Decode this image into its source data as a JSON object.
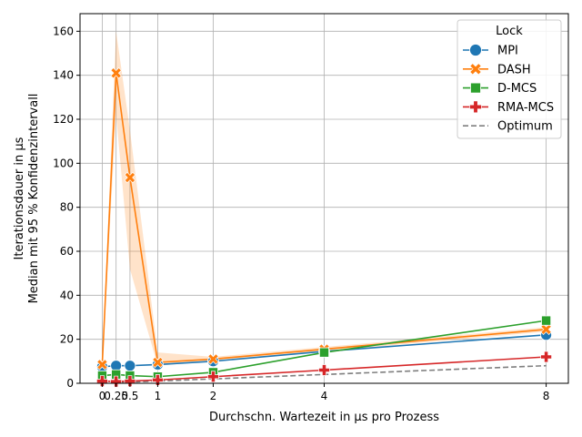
{
  "chart_data": {
    "type": "line",
    "xlabel": "Durchschn. Wartezeit in µs pro Prozess",
    "ylabel_lines": [
      "Iterationsdauer in µs",
      "Median mit 95 % Konfidenzintervall"
    ],
    "x_ticks": [
      0,
      0.25,
      0.5,
      1,
      2,
      4,
      8
    ],
    "x_tick_labels": [
      "0",
      "0.25",
      "0.5",
      "1",
      "2",
      "4",
      "8"
    ],
    "y_ticks": [
      0,
      20,
      40,
      60,
      80,
      100,
      120,
      140,
      160
    ],
    "y_tick_labels": [
      "0",
      "20",
      "40",
      "60",
      "80",
      "100",
      "120",
      "140",
      "160"
    ],
    "xlim": [
      -0.4,
      8.4
    ],
    "ylim": [
      0,
      168
    ],
    "grid": true,
    "legend_title": "Lock",
    "legend_position": "top-right",
    "series": [
      {
        "name": "MPI",
        "color": "#1f77b4",
        "marker": "circle",
        "dashed": false,
        "x": [
          0,
          0.25,
          0.5,
          1,
          2,
          4,
          8
        ],
        "y": [
          7.5,
          8,
          8,
          8.5,
          10,
          14.5,
          22
        ]
      },
      {
        "name": "DASH",
        "color": "#ff7f0e",
        "marker": "x",
        "dashed": false,
        "x": [
          0,
          0.25,
          0.5,
          1,
          2,
          4,
          8
        ],
        "y": [
          8.5,
          141,
          93.5,
          9.5,
          11,
          15.5,
          24.5
        ],
        "ci_low": [
          7,
          122,
          52,
          8,
          10,
          14.5,
          23.5
        ],
        "ci_high": [
          10,
          160,
          115,
          14,
          12,
          16.5,
          25.5
        ]
      },
      {
        "name": "D-MCS",
        "color": "#2ca02c",
        "marker": "square",
        "dashed": false,
        "x": [
          0,
          0.25,
          0.5,
          1,
          2,
          4,
          8
        ],
        "y": [
          3.5,
          4,
          3.5,
          3,
          5,
          14,
          28.5
        ]
      },
      {
        "name": "RMA-MCS",
        "color": "#d62728",
        "marker": "plus",
        "dashed": false,
        "x": [
          0,
          0.25,
          0.5,
          1,
          2,
          4,
          8
        ],
        "y": [
          1,
          0.8,
          1,
          1.5,
          3,
          6,
          12
        ]
      },
      {
        "name": "Optimum",
        "color": "#7f7f7f",
        "marker": "none",
        "dashed": true,
        "x": [
          0,
          0.25,
          0.5,
          1,
          2,
          4,
          8
        ],
        "y": [
          0,
          0.25,
          0.5,
          1,
          2,
          4,
          8
        ]
      }
    ]
  }
}
